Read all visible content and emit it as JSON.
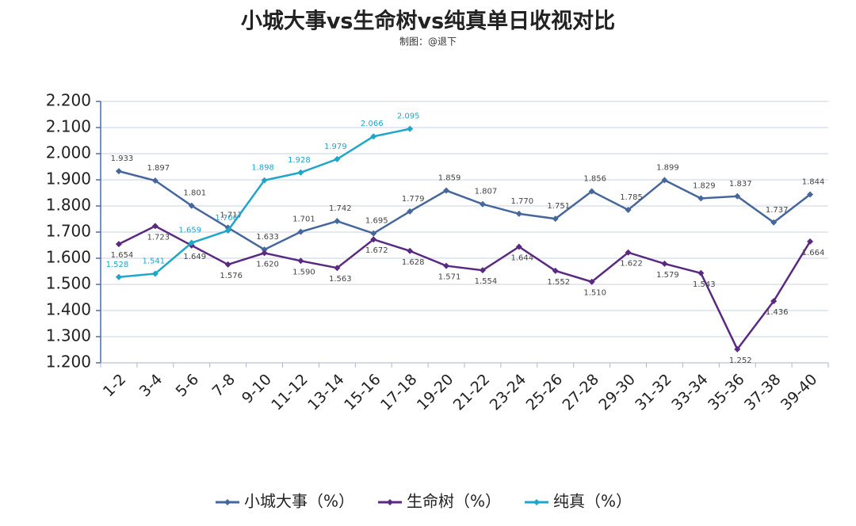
{
  "chart_data": {
    "type": "line",
    "title": "小城大事vs生命树vs纯真单日收视对比",
    "subtitle": "制图：@退下",
    "categories": [
      "1-2",
      "3-4",
      "5-6",
      "7-8",
      "9-10",
      "11-12",
      "13-14",
      "15-16",
      "17-18",
      "19-20",
      "21-22",
      "23-24",
      "25-26",
      "27-28",
      "29-30",
      "31-32",
      "33-34",
      "35-36",
      "37-38",
      "39-40"
    ],
    "series": [
      {
        "name": "小城大事（%）",
        "color": "#46679c",
        "values": [
          1.933,
          1.897,
          1.801,
          1.717,
          1.633,
          1.701,
          1.742,
          1.695,
          1.779,
          1.859,
          1.807,
          1.77,
          1.751,
          1.856,
          1.785,
          1.899,
          1.829,
          1.837,
          1.737,
          1.844
        ],
        "value_labels": [
          "1.933",
          "1.897",
          "1.801",
          "1.717",
          "1.633",
          "1.701",
          "1.742",
          "1.695",
          "1.779",
          "1.859",
          "1.807",
          "1.770",
          "1.751",
          "1.856",
          "1.785",
          "1.899",
          "1.829",
          "1.837",
          "1.737",
          "1.844"
        ]
      },
      {
        "name": "生命树（%）",
        "color": "#5a2a82",
        "values": [
          1.654,
          1.723,
          1.649,
          1.576,
          1.62,
          1.59,
          1.563,
          1.672,
          1.628,
          1.571,
          1.554,
          1.644,
          1.552,
          1.51,
          1.622,
          1.579,
          1.543,
          1.252,
          1.436,
          1.664
        ],
        "value_labels": [
          "1.654",
          "1.723",
          "1.649",
          "1.576",
          "1.620",
          "1.590",
          "1.563",
          "1.672",
          "1.628",
          "1.571",
          "1.554",
          "1.644",
          "1.552",
          "1.510",
          "1.622",
          "1.579",
          "1.543",
          "1.252",
          "1.436",
          "1.664"
        ]
      },
      {
        "name": "纯真（%）",
        "color": "#1fa6c8",
        "values": [
          1.528,
          1.541,
          1.659,
          1.706,
          1.898,
          1.928,
          1.979,
          2.066,
          2.095,
          null,
          null,
          null,
          null,
          null,
          null,
          null,
          null,
          null,
          null,
          null
        ],
        "value_labels": [
          "1.528",
          "1.541",
          "1.659",
          "1.706",
          "1.898",
          "1.928",
          "1.979",
          "2.066",
          "2.095",
          null,
          null,
          null,
          null,
          null,
          null,
          null,
          null,
          null,
          null,
          null
        ]
      }
    ],
    "ylim": [
      1.2,
      2.2
    ],
    "yticks": [
      {
        "value": 1.2,
        "label": "1.200"
      },
      {
        "value": 1.3,
        "label": "1.300"
      },
      {
        "value": 1.4,
        "label": "1.400"
      },
      {
        "value": 1.5,
        "label": "1.500"
      },
      {
        "value": 1.6,
        "label": "1.600"
      },
      {
        "value": 1.7,
        "label": "1.700"
      },
      {
        "value": 1.8,
        "label": "1.800"
      },
      {
        "value": 1.9,
        "label": "1.900"
      },
      {
        "value": 2.0,
        "label": "2.000"
      },
      {
        "value": 2.1,
        "label": "2.100"
      },
      {
        "value": 2.2,
        "label": "2.200"
      }
    ],
    "grid": true,
    "legend": "bottom"
  }
}
